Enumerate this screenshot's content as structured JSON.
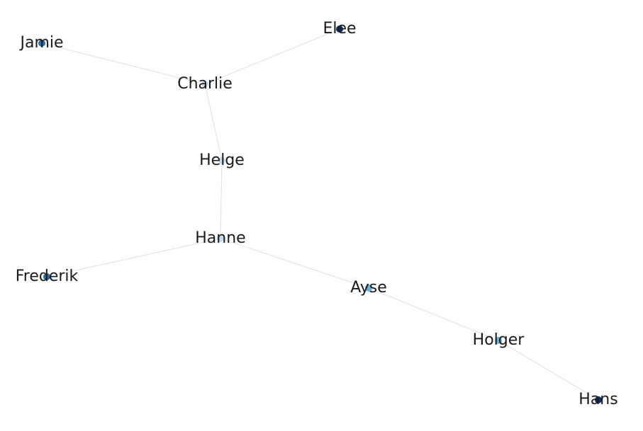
{
  "graph": {
    "nodes": [
      {
        "id": "jamie",
        "label": "Jamie",
        "color": "#2b6ea6"
      },
      {
        "id": "charlie",
        "label": "Charlie",
        "color": "#c6dbef"
      },
      {
        "id": "elee",
        "label": "Elee",
        "color": "#08306b"
      },
      {
        "id": "helge",
        "label": "Helge",
        "color": "#c6dbef"
      },
      {
        "id": "hanne",
        "label": "Hanne",
        "color": "#c6dbef"
      },
      {
        "id": "frederik",
        "label": "Frederik",
        "color": "#2b6ea6"
      },
      {
        "id": "ayse",
        "label": "Ayse",
        "color": "#6baed6"
      },
      {
        "id": "holger",
        "label": "Holger",
        "color": "#6baed6"
      },
      {
        "id": "hans",
        "label": "Hans",
        "color": "#08306b"
      }
    ],
    "edges": [
      {
        "source": "jamie",
        "target": "charlie"
      },
      {
        "source": "elee",
        "target": "charlie"
      },
      {
        "source": "charlie",
        "target": "helge"
      },
      {
        "source": "helge",
        "target": "hanne"
      },
      {
        "source": "hanne",
        "target": "frederik"
      },
      {
        "source": "hanne",
        "target": "ayse"
      },
      {
        "source": "ayse",
        "target": "holger"
      },
      {
        "source": "holger",
        "target": "hans"
      }
    ]
  }
}
